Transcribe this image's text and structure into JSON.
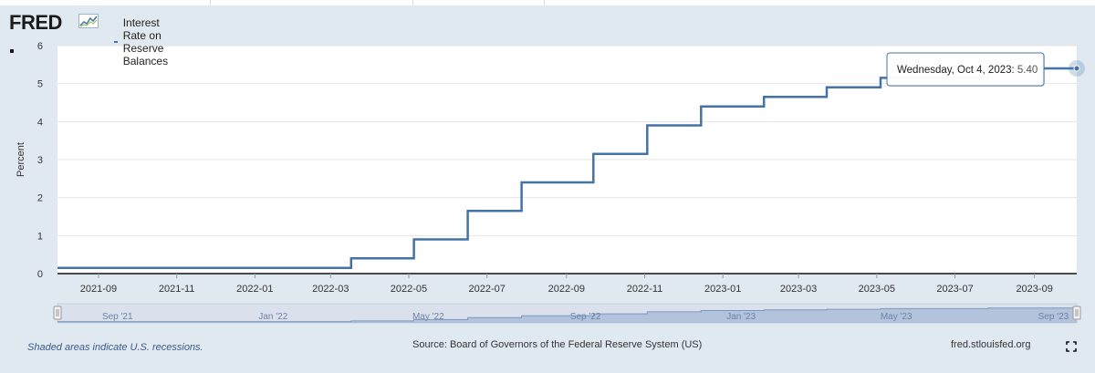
{
  "header": {
    "logo_text": "FRED",
    "series_label": "Interest Rate on Reserve Balances"
  },
  "footer": {
    "note": "Shaded areas indicate U.S. recessions.",
    "source": "Source: Board of Governors of the Federal Reserve System (US)",
    "site": "fred.stlouisfed.org"
  },
  "tooltip": {
    "date": "Wednesday, Oct 4, 2023:",
    "value": "5.40"
  },
  "colors": {
    "series": "#4572a7",
    "background": "#e1e9f0",
    "plot": "#ffffff",
    "navigator_fill": "#bcc9dd"
  },
  "chart_data": {
    "type": "line",
    "step": true,
    "series": [
      {
        "name": "Interest Rate on Reserve Balances",
        "points": [
          [
            "2021-07-31",
            0.15
          ],
          [
            "2022-03-17",
            0.15
          ],
          [
            "2022-03-17",
            0.4
          ],
          [
            "2022-05-05",
            0.4
          ],
          [
            "2022-05-05",
            0.9
          ],
          [
            "2022-06-16",
            0.9
          ],
          [
            "2022-06-16",
            1.65
          ],
          [
            "2022-07-28",
            1.65
          ],
          [
            "2022-07-28",
            2.4
          ],
          [
            "2022-09-22",
            2.4
          ],
          [
            "2022-09-22",
            3.15
          ],
          [
            "2022-11-03",
            3.15
          ],
          [
            "2022-11-03",
            3.9
          ],
          [
            "2022-12-15",
            3.9
          ],
          [
            "2022-12-15",
            4.4
          ],
          [
            "2023-02-02",
            4.4
          ],
          [
            "2023-02-02",
            4.65
          ],
          [
            "2023-03-23",
            4.65
          ],
          [
            "2023-03-23",
            4.9
          ],
          [
            "2023-05-04",
            4.9
          ],
          [
            "2023-05-04",
            5.15
          ],
          [
            "2023-07-27",
            5.15
          ],
          [
            "2023-07-27",
            5.4
          ],
          [
            "2023-10-04",
            5.4
          ]
        ]
      }
    ],
    "ylabel": "Percent",
    "ylim": [
      0,
      6
    ],
    "yticks": [
      0,
      1,
      2,
      3,
      4,
      5,
      6
    ],
    "xlim": [
      "2021-07-31",
      "2023-10-04"
    ],
    "xticks": [
      "2021-09",
      "2021-11",
      "2022-01",
      "2022-03",
      "2022-05",
      "2022-07",
      "2022-09",
      "2022-11",
      "2023-01",
      "2023-03",
      "2023-05",
      "2023-07",
      "2023-09"
    ],
    "navigator_labels": [
      "Sep '21",
      "Jan '22",
      "May '22",
      "Sep '22",
      "Jan '23",
      "May '23",
      "Sep '23"
    ],
    "grid": true,
    "highlight_point": [
      "2023-10-04",
      5.4
    ]
  }
}
